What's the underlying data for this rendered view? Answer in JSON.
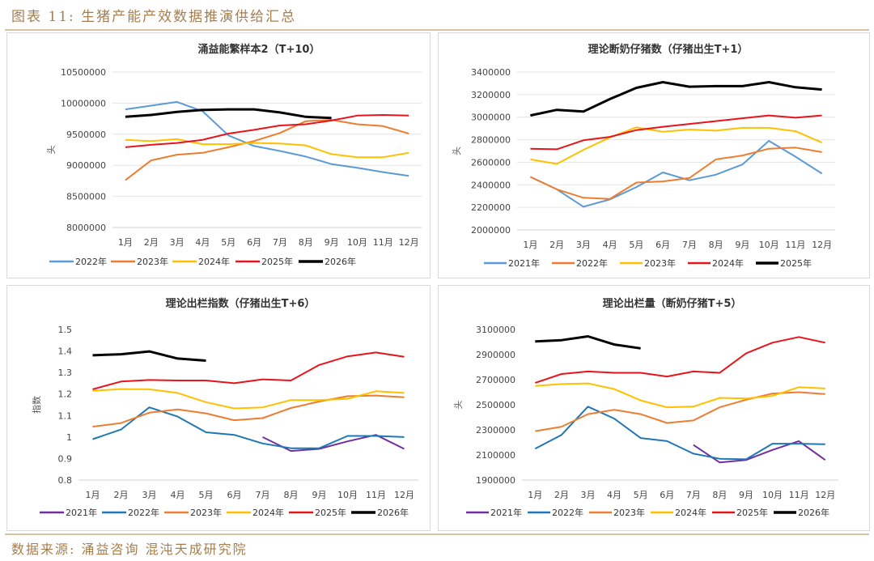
{
  "figure_title": "图表 11:  生猪产能产效数据推演供给汇总",
  "source": "数据来源:  涌益咨询  混沌天成研究院",
  "colors": {
    "2021_blue_light": "#5b9bd5",
    "2022_orange": "#ed7d31",
    "yellow": "#ffc000",
    "red": "#e8141b",
    "black": "#000000",
    "purple": "#7030a0",
    "blue_dark": "#1f77b4"
  },
  "chart_data": [
    {
      "type": "line",
      "title": "涌益能繁样本2（T+10）",
      "xlabel": "",
      "ylabel": "头",
      "ylim": [
        8000000,
        10500000
      ],
      "yticks": [
        8000000,
        8500000,
        9000000,
        9500000,
        10000000,
        10500000
      ],
      "ytick_labels": [
        "8000000",
        "8500000",
        "9000000",
        "9500000",
        "10000000",
        "10500000"
      ],
      "grid": true,
      "legend": "bottom",
      "categories": [
        "1月",
        "2月",
        "3月",
        "4月",
        "5月",
        "6月",
        "7月",
        "8月",
        "9月",
        "10月",
        "11月",
        "12月"
      ],
      "series": [
        {
          "name": "2022年",
          "color": "#5b9bd5",
          "values": [
            9900000,
            9960000,
            10020000,
            9870000,
            9480000,
            9310000,
            9230000,
            9140000,
            9020000,
            8960000,
            8890000,
            8830000
          ]
        },
        {
          "name": "2023年",
          "color": "#ed7d31",
          "values": [
            8760000,
            9080000,
            9170000,
            9200000,
            9290000,
            9390000,
            9520000,
            9710000,
            9730000,
            9660000,
            9630000,
            9510000
          ]
        },
        {
          "name": "2024年",
          "color": "#ffc000",
          "values": [
            9410000,
            9390000,
            9420000,
            9340000,
            9340000,
            9360000,
            9350000,
            9320000,
            9180000,
            9130000,
            9130000,
            9200000
          ]
        },
        {
          "name": "2025年",
          "color": "#e8141b",
          "values": [
            9290000,
            9330000,
            9360000,
            9410000,
            9510000,
            9570000,
            9640000,
            9660000,
            9720000,
            9800000,
            9810000,
            9800000
          ]
        },
        {
          "name": "2026年",
          "color": "#000000",
          "values": [
            9780000,
            9810000,
            9860000,
            9890000,
            9900000,
            9900000,
            9850000,
            9780000,
            9760000,
            null,
            null,
            null
          ]
        }
      ]
    },
    {
      "type": "line",
      "title": "理论断奶仔猪数（仔猪出生T+1）",
      "xlabel": "",
      "ylabel": "头",
      "ylim": [
        2000000,
        3400000
      ],
      "yticks": [
        2000000,
        2200000,
        2400000,
        2600000,
        2800000,
        3000000,
        3200000,
        3400000
      ],
      "ytick_labels": [
        "2000000",
        "2200000",
        "2400000",
        "2600000",
        "2800000",
        "3000000",
        "3200000",
        "3400000"
      ],
      "grid": true,
      "legend": "bottom",
      "categories": [
        "1月",
        "2月",
        "3月",
        "4月",
        "5月",
        "6月",
        "7月",
        "8月",
        "9月",
        "10月",
        "11月",
        "12月"
      ],
      "series": [
        {
          "name": "2021年",
          "color": "#5b9bd5",
          "values": [
            2470000,
            2360000,
            2205000,
            2270000,
            2380000,
            2510000,
            2440000,
            2490000,
            2580000,
            2790000,
            2650000,
            2500000
          ]
        },
        {
          "name": "2022年",
          "color": "#ed7d31",
          "values": [
            2470000,
            2360000,
            2285000,
            2275000,
            2420000,
            2430000,
            2460000,
            2625000,
            2660000,
            2720000,
            2730000,
            2690000
          ]
        },
        {
          "name": "2023年",
          "color": "#ffc000",
          "values": [
            2625000,
            2585000,
            2710000,
            2820000,
            2910000,
            2870000,
            2890000,
            2880000,
            2905000,
            2905000,
            2875000,
            2775000
          ]
        },
        {
          "name": "2024年",
          "color": "#e8141b",
          "values": [
            2720000,
            2715000,
            2795000,
            2825000,
            2885000,
            2915000,
            2940000,
            2965000,
            2990000,
            3015000,
            2995000,
            3015000
          ]
        },
        {
          "name": "2025年",
          "color": "#000000",
          "values": [
            3015000,
            3065000,
            3050000,
            3160000,
            3260000,
            3310000,
            3270000,
            3275000,
            3275000,
            3310000,
            3265000,
            3245000
          ]
        }
      ]
    },
    {
      "type": "line",
      "title": "理论出栏指数（仔猪出生T+6）",
      "xlabel": "",
      "ylabel": "指数",
      "ylim": [
        0.8,
        1.5
      ],
      "yticks": [
        0.8,
        0.9,
        1.0,
        1.1,
        1.2,
        1.3,
        1.4,
        1.5
      ],
      "ytick_labels": [
        "0.8",
        "0.9",
        "1",
        "1.1",
        "1.2",
        "1.3",
        "1.4",
        "1.5"
      ],
      "grid": false,
      "legend": "bottom",
      "categories": [
        "1月",
        "2月",
        "3月",
        "4月",
        "5月",
        "6月",
        "7月",
        "8月",
        "9月",
        "10月",
        "11月",
        "12月"
      ],
      "series": [
        {
          "name": "2021年",
          "color": "#7030a0",
          "values": [
            null,
            null,
            null,
            null,
            null,
            null,
            1.0,
            0.935,
            0.945,
            0.98,
            1.01,
            0.945
          ]
        },
        {
          "name": "2022年",
          "color": "#1f77b4",
          "values": [
            0.99,
            1.035,
            1.138,
            1.095,
            1.022,
            1.01,
            0.97,
            0.948,
            0.948,
            1.005,
            1.005,
            1.0
          ]
        },
        {
          "name": "2023年",
          "color": "#ed7d31",
          "values": [
            1.048,
            1.065,
            1.113,
            1.128,
            1.11,
            1.078,
            1.088,
            1.135,
            1.165,
            1.19,
            1.193,
            1.185
          ]
        },
        {
          "name": "2024年",
          "color": "#ffc000",
          "values": [
            1.215,
            1.223,
            1.222,
            1.205,
            1.162,
            1.133,
            1.138,
            1.172,
            1.172,
            1.178,
            1.213,
            1.205
          ]
        },
        {
          "name": "2025年",
          "color": "#e8141b",
          "values": [
            1.222,
            1.258,
            1.265,
            1.263,
            1.263,
            1.25,
            1.268,
            1.263,
            1.335,
            1.375,
            1.393,
            1.373
          ]
        },
        {
          "name": "2026年",
          "color": "#000000",
          "values": [
            1.38,
            1.385,
            1.398,
            1.365,
            1.355,
            null,
            null,
            null,
            null,
            null,
            null,
            null
          ]
        }
      ]
    },
    {
      "type": "line",
      "title": "理论出栏量（断奶仔猪T+5）",
      "xlabel": "",
      "ylabel": "头",
      "ylim": [
        1900000,
        3100000
      ],
      "yticks": [
        1900000,
        2100000,
        2300000,
        2500000,
        2700000,
        2900000,
        3100000
      ],
      "ytick_labels": [
        "1900000",
        "2100000",
        "2300000",
        "2500000",
        "2700000",
        "2900000",
        "3100000"
      ],
      "grid": false,
      "legend": "bottom",
      "categories": [
        "1月",
        "2月",
        "3月",
        "4月",
        "5月",
        "6月",
        "7月",
        "8月",
        "9月",
        "10月",
        "11月",
        "12月"
      ],
      "series": [
        {
          "name": "2021年",
          "color": "#7030a0",
          "values": [
            null,
            null,
            null,
            null,
            null,
            null,
            2180000,
            2040000,
            2060000,
            2140000,
            2210000,
            2060000
          ]
        },
        {
          "name": "2022年",
          "color": "#1f77b4",
          "values": [
            2150000,
            2260000,
            2485000,
            2390000,
            2235000,
            2210000,
            2110000,
            2070000,
            2065000,
            2190000,
            2190000,
            2185000
          ]
        },
        {
          "name": "2023年",
          "color": "#ed7d31",
          "values": [
            2290000,
            2325000,
            2425000,
            2460000,
            2425000,
            2355000,
            2375000,
            2480000,
            2540000,
            2590000,
            2600000,
            2585000
          ]
        },
        {
          "name": "2024年",
          "color": "#ffc000",
          "values": [
            2650000,
            2665000,
            2670000,
            2625000,
            2535000,
            2480000,
            2485000,
            2555000,
            2550000,
            2570000,
            2640000,
            2630000
          ]
        },
        {
          "name": "2025年",
          "color": "#e8141b",
          "values": [
            2675000,
            2745000,
            2765000,
            2755000,
            2755000,
            2725000,
            2765000,
            2755000,
            2910000,
            2995000,
            3040000,
            2995000
          ]
        },
        {
          "name": "2026年",
          "color": "#000000",
          "values": [
            3005000,
            3015000,
            3045000,
            2980000,
            2950000,
            null,
            null,
            null,
            null,
            null,
            null,
            null
          ]
        }
      ]
    }
  ]
}
